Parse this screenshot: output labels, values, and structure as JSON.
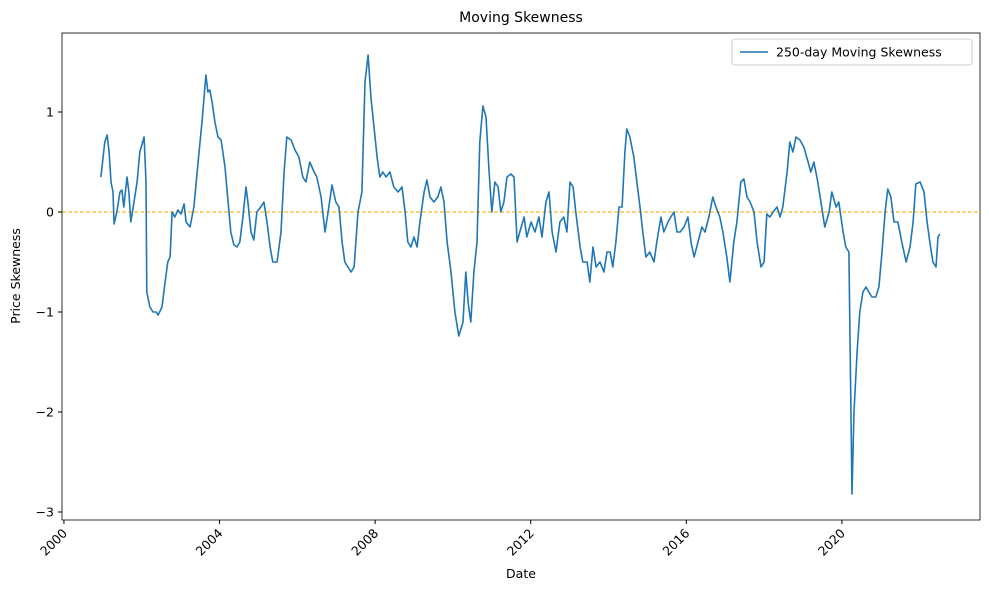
{
  "chart_data": {
    "type": "line",
    "title": "Moving Skewness",
    "x_label": "Date",
    "y_label": "Price Skewness",
    "x": [
      2000.95,
      2001.05,
      2001.11,
      2001.16,
      2001.21,
      2001.26,
      2001.29,
      2001.36,
      2001.44,
      2001.49,
      2001.54,
      2001.62,
      2001.67,
      2001.72,
      2001.8,
      2001.88,
      2001.95,
      2002.06,
      2002.11,
      2002.13,
      2002.21,
      2002.29,
      2002.37,
      2002.42,
      2002.52,
      2002.6,
      2002.67,
      2002.73,
      2002.78,
      2002.85,
      2002.93,
      2003.01,
      2003.09,
      2003.14,
      2003.24,
      2003.34,
      2003.45,
      2003.55,
      2003.65,
      2003.7,
      2003.75,
      2003.81,
      2003.88,
      2003.96,
      2004.04,
      2004.14,
      2004.22,
      2004.29,
      2004.37,
      2004.45,
      2004.52,
      2004.6,
      2004.68,
      2004.73,
      2004.81,
      2004.88,
      2004.96,
      2005.06,
      2005.14,
      2005.22,
      2005.3,
      2005.37,
      2005.48,
      2005.58,
      2005.66,
      2005.73,
      2005.84,
      2005.94,
      2006.04,
      2006.14,
      2006.22,
      2006.32,
      2006.43,
      2006.5,
      2006.61,
      2006.71,
      2006.79,
      2006.89,
      2006.99,
      2007.07,
      2007.15,
      2007.22,
      2007.3,
      2007.38,
      2007.46,
      2007.56,
      2007.66,
      2007.74,
      2007.82,
      2007.89,
      2007.97,
      2008.05,
      2008.12,
      2008.2,
      2008.28,
      2008.38,
      2008.48,
      2008.59,
      2008.69,
      2008.77,
      2008.84,
      2008.92,
      2009.0,
      2009.08,
      2009.15,
      2009.26,
      2009.33,
      2009.41,
      2009.51,
      2009.61,
      2009.69,
      2009.77,
      2009.85,
      2009.95,
      2010.05,
      2010.15,
      2010.26,
      2010.33,
      2010.39,
      2010.46,
      2010.54,
      2010.62,
      2010.69,
      2010.77,
      2010.85,
      2010.93,
      2011.0,
      2011.08,
      2011.16,
      2011.23,
      2011.31,
      2011.39,
      2011.49,
      2011.57,
      2011.65,
      2011.72,
      2011.83,
      2011.9,
      2012.01,
      2012.11,
      2012.21,
      2012.29,
      2012.39,
      2012.47,
      2012.55,
      2012.65,
      2012.75,
      2012.85,
      2012.93,
      2013.01,
      2013.09,
      2013.16,
      2013.27,
      2013.34,
      2013.45,
      2013.52,
      2013.6,
      2013.68,
      2013.78,
      2013.88,
      2013.96,
      2014.04,
      2014.11,
      2014.19,
      2014.27,
      2014.35,
      2014.42,
      2014.47,
      2014.55,
      2014.65,
      2014.73,
      2014.81,
      2014.88,
      2014.96,
      2015.06,
      2015.17,
      2015.24,
      2015.35,
      2015.42,
      2015.53,
      2015.6,
      2015.68,
      2015.76,
      2015.84,
      2015.94,
      2016.04,
      2016.12,
      2016.2,
      2016.3,
      2016.4,
      2016.48,
      2016.58,
      2016.68,
      2016.76,
      2016.86,
      2016.94,
      2017.04,
      2017.12,
      2017.22,
      2017.3,
      2017.4,
      2017.48,
      2017.56,
      2017.64,
      2017.74,
      2017.82,
      2017.92,
      2018.0,
      2018.07,
      2018.15,
      2018.23,
      2018.33,
      2018.41,
      2018.48,
      2018.59,
      2018.66,
      2018.74,
      2018.82,
      2018.92,
      2019.02,
      2019.13,
      2019.2,
      2019.28,
      2019.38,
      2019.46,
      2019.56,
      2019.67,
      2019.74,
      2019.85,
      2019.92,
      2020.03,
      2020.1,
      2020.18,
      2020.26,
      2020.31,
      2020.39,
      2020.46,
      2020.54,
      2020.62,
      2020.69,
      2020.77,
      2020.87,
      2020.95,
      2021.03,
      2021.11,
      2021.18,
      2021.26,
      2021.34,
      2021.44,
      2021.54,
      2021.65,
      2021.75,
      2021.83,
      2021.9,
      2022.01,
      2022.11,
      2022.19,
      2022.26,
      2022.34,
      2022.42,
      2022.47,
      2022.52
    ],
    "series": [
      {
        "name": "250-day Moving Skewness",
        "color": "#1f77b4",
        "values": [
          0.35,
          0.7,
          0.77,
          0.6,
          0.3,
          0.2,
          -0.12,
          0.0,
          0.2,
          0.22,
          0.05,
          0.35,
          0.2,
          -0.1,
          0.1,
          0.3,
          0.6,
          0.75,
          0.3,
          -0.8,
          -0.95,
          -1.0,
          -1.0,
          -1.03,
          -0.95,
          -0.7,
          -0.5,
          -0.45,
          0.0,
          -0.05,
          0.02,
          -0.02,
          0.08,
          -0.1,
          -0.15,
          0.05,
          0.5,
          0.9,
          1.37,
          1.2,
          1.22,
          1.1,
          0.9,
          0.75,
          0.72,
          0.45,
          0.1,
          -0.2,
          -0.33,
          -0.35,
          -0.3,
          -0.05,
          0.25,
          0.1,
          -0.2,
          -0.28,
          0.0,
          0.05,
          0.1,
          -0.1,
          -0.35,
          -0.5,
          -0.5,
          -0.2,
          0.4,
          0.75,
          0.72,
          0.62,
          0.55,
          0.35,
          0.3,
          0.5,
          0.4,
          0.35,
          0.15,
          -0.2,
          0.0,
          0.27,
          0.1,
          0.05,
          -0.3,
          -0.5,
          -0.55,
          -0.6,
          -0.55,
          0.0,
          0.2,
          1.3,
          1.57,
          1.15,
          0.85,
          0.55,
          0.35,
          0.4,
          0.35,
          0.4,
          0.25,
          0.2,
          0.25,
          0.0,
          -0.3,
          -0.35,
          -0.25,
          -0.35,
          -0.1,
          0.2,
          0.32,
          0.15,
          0.1,
          0.15,
          0.25,
          0.1,
          -0.3,
          -0.6,
          -1.0,
          -1.24,
          -1.1,
          -0.6,
          -0.9,
          -1.1,
          -0.6,
          -0.3,
          0.7,
          1.06,
          0.95,
          0.4,
          0.0,
          0.3,
          0.25,
          0.0,
          0.1,
          0.35,
          0.38,
          0.35,
          -0.3,
          -0.2,
          -0.05,
          -0.25,
          -0.1,
          -0.2,
          -0.05,
          -0.25,
          0.1,
          0.2,
          -0.2,
          -0.4,
          -0.1,
          -0.05,
          -0.2,
          0.3,
          0.25,
          0.0,
          -0.35,
          -0.5,
          -0.5,
          -0.7,
          -0.35,
          -0.55,
          -0.5,
          -0.6,
          -0.4,
          -0.4,
          -0.55,
          -0.3,
          0.05,
          0.05,
          0.6,
          0.83,
          0.75,
          0.55,
          0.3,
          0.05,
          -0.2,
          -0.45,
          -0.4,
          -0.5,
          -0.3,
          -0.05,
          -0.2,
          -0.1,
          -0.05,
          0.0,
          -0.2,
          -0.2,
          -0.15,
          -0.05,
          -0.3,
          -0.45,
          -0.3,
          -0.15,
          -0.2,
          -0.05,
          0.15,
          0.05,
          -0.05,
          -0.2,
          -0.45,
          -0.7,
          -0.3,
          -0.1,
          0.3,
          0.33,
          0.15,
          0.1,
          0.0,
          -0.3,
          -0.55,
          -0.5,
          -0.02,
          -0.05,
          0.0,
          0.05,
          -0.05,
          0.05,
          0.4,
          0.7,
          0.6,
          0.75,
          0.72,
          0.65,
          0.5,
          0.4,
          0.5,
          0.3,
          0.1,
          -0.15,
          0.0,
          0.2,
          0.05,
          0.1,
          -0.2,
          -0.35,
          -0.4,
          -2.82,
          -2.0,
          -1.4,
          -1.0,
          -0.8,
          -0.75,
          -0.8,
          -0.85,
          -0.85,
          -0.75,
          -0.4,
          0.0,
          0.23,
          0.15,
          -0.1,
          -0.1,
          -0.3,
          -0.5,
          -0.35,
          -0.1,
          0.28,
          0.3,
          0.2,
          -0.1,
          -0.3,
          -0.5,
          -0.55,
          -0.25,
          -0.22
        ]
      }
    ],
    "xlim": [
      1999.95,
      2023.55
    ],
    "xticks": [
      2000,
      2004,
      2008,
      2012,
      2016,
      2020
    ],
    "ylim": [
      -3.08,
      1.79
    ],
    "yticks": [
      {
        "value": -3,
        "label": "−3"
      },
      {
        "value": -2,
        "label": "−2"
      },
      {
        "value": -1,
        "label": "−1"
      },
      0,
      1
    ],
    "hline": {
      "y": 0,
      "color": "orange"
    },
    "legend": "upper right"
  }
}
